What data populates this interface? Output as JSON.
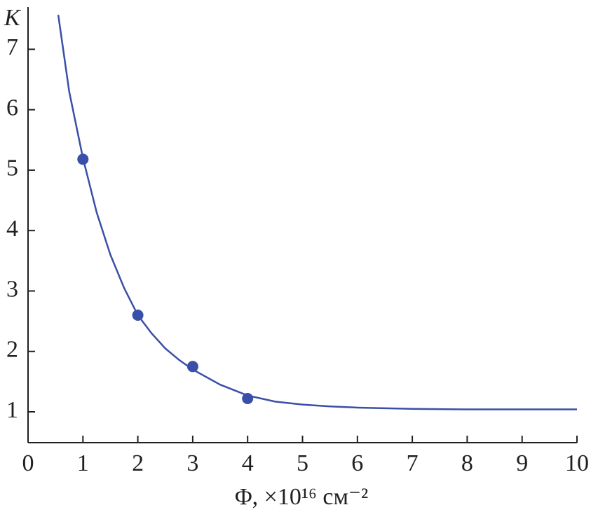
{
  "chart_data": {
    "type": "scatter",
    "x_label": "Φ, ×10¹⁶ см⁻²",
    "y_label": "K",
    "points": {
      "x": [
        1,
        2,
        3,
        4
      ],
      "y": [
        5.18,
        2.6,
        1.75,
        1.22
      ]
    },
    "fit": {
      "x": [
        0.55,
        0.75,
        1,
        1.25,
        1.5,
        1.75,
        2,
        2.25,
        2.5,
        2.75,
        3,
        3.5,
        4,
        4.5,
        5,
        5.5,
        6,
        7,
        8,
        9,
        10
      ],
      "y": [
        7.57,
        6.3,
        5.2,
        4.3,
        3.6,
        3.05,
        2.6,
        2.3,
        2.05,
        1.86,
        1.7,
        1.45,
        1.27,
        1.17,
        1.12,
        1.09,
        1.07,
        1.05,
        1.04,
        1.04,
        1.04
      ]
    },
    "color": "#3a4fa8",
    "xlim": [
      0,
      10
    ],
    "xticks": [
      0,
      1,
      2,
      3,
      4,
      5,
      6,
      7,
      8,
      9,
      10
    ],
    "ylim": [
      0.49,
      7.7
    ],
    "yticks": [
      1,
      2,
      3,
      4,
      5,
      6,
      7
    ]
  }
}
